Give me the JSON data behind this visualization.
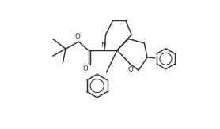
{
  "bg_color": "#ffffff",
  "line_color": "#303030",
  "line_width": 1.05,
  "figsize": [
    2.78,
    1.64
  ],
  "dpi": 100,
  "font_size": 6.2,
  "xlim": [
    0,
    10
  ],
  "ylim": [
    -4.5,
    4.5
  ]
}
